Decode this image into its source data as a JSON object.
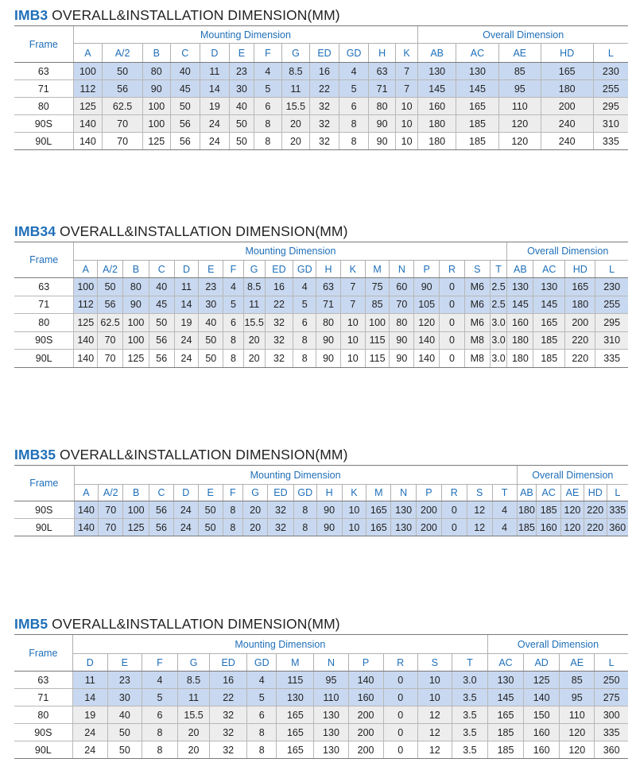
{
  "sections": [
    {
      "id": "imb3",
      "code": "IMB3",
      "title_rest": " OVERALL&INSTALLATION DIMENSION(MM)",
      "frame_label": "Frame",
      "mounting_label": "Mounting Dimension",
      "overall_label": "Overall Dimension",
      "mounting_cols": [
        "A",
        "A/2",
        "B",
        "C",
        "D",
        "E",
        "F",
        "G",
        "ED",
        "GD",
        "H",
        "K"
      ],
      "overall_cols": [
        "AB",
        "AC",
        "AE",
        "HD",
        "L"
      ],
      "rows": [
        {
          "frame": "63",
          "values": [
            "100",
            "50",
            "80",
            "40",
            "11",
            "23",
            "4",
            "8.5",
            "16",
            "4",
            "63",
            "7",
            "130",
            "130",
            "85",
            "165",
            "230"
          ]
        },
        {
          "frame": "71",
          "values": [
            "112",
            "56",
            "90",
            "45",
            "14",
            "30",
            "5",
            "11",
            "22",
            "5",
            "71",
            "7",
            "145",
            "145",
            "95",
            "180",
            "255"
          ]
        },
        {
          "frame": "80",
          "values": [
            "125",
            "62.5",
            "100",
            "50",
            "19",
            "40",
            "6",
            "15.5",
            "32",
            "6",
            "80",
            "10",
            "160",
            "165",
            "110",
            "200",
            "295"
          ]
        },
        {
          "frame": "90S",
          "values": [
            "140",
            "70",
            "100",
            "56",
            "24",
            "50",
            "8",
            "20",
            "32",
            "8",
            "90",
            "10",
            "180",
            "185",
            "120",
            "240",
            "310"
          ]
        },
        {
          "frame": "90L",
          "values": [
            "140",
            "70",
            "125",
            "56",
            "24",
            "50",
            "8",
            "20",
            "32",
            "8",
            "90",
            "10",
            "180",
            "185",
            "120",
            "240",
            "335"
          ]
        }
      ]
    },
    {
      "id": "imb34",
      "code": "IMB34",
      "title_rest": " OVERALL&INSTALLATION DIMENSION(MM)",
      "frame_label": "Frame",
      "mounting_label": "Mounting Dimension",
      "overall_label": "Overall Dimension",
      "mounting_cols": [
        "A",
        "A/2",
        "B",
        "C",
        "D",
        "E",
        "F",
        "G",
        "ED",
        "GD",
        "H",
        "K",
        "M",
        "N",
        "P",
        "R",
        "S",
        "T"
      ],
      "overall_cols": [
        "AB",
        "AC",
        "HD",
        "L"
      ],
      "rows": [
        {
          "frame": "63",
          "values": [
            "100",
            "50",
            "80",
            "40",
            "11",
            "23",
            "4",
            "8.5",
            "16",
            "4",
            "63",
            "7",
            "75",
            "60",
            "90",
            "0",
            "M6",
            "2.5",
            "130",
            "130",
            "165",
            "230"
          ]
        },
        {
          "frame": "71",
          "values": [
            "112",
            "56",
            "90",
            "45",
            "14",
            "30",
            "5",
            "11",
            "22",
            "5",
            "71",
            "7",
            "85",
            "70",
            "105",
            "0",
            "M6",
            "2.5",
            "145",
            "145",
            "180",
            "255"
          ]
        },
        {
          "frame": "80",
          "values": [
            "125",
            "62.5",
            "100",
            "50",
            "19",
            "40",
            "6",
            "15.5",
            "32",
            "6",
            "80",
            "10",
            "100",
            "80",
            "120",
            "0",
            "M6",
            "3.0",
            "160",
            "165",
            "200",
            "295"
          ]
        },
        {
          "frame": "90S",
          "values": [
            "140",
            "70",
            "100",
            "56",
            "24",
            "50",
            "8",
            "20",
            "32",
            "8",
            "90",
            "10",
            "115",
            "90",
            "140",
            "0",
            "M8",
            "3.0",
            "180",
            "185",
            "220",
            "310"
          ]
        },
        {
          "frame": "90L",
          "values": [
            "140",
            "70",
            "125",
            "56",
            "24",
            "50",
            "8",
            "20",
            "32",
            "8",
            "90",
            "10",
            "115",
            "90",
            "140",
            "0",
            "M8",
            "3.0",
            "180",
            "185",
            "220",
            "335"
          ]
        }
      ]
    },
    {
      "id": "imb35",
      "code": "IMB35",
      "title_rest": " OVERALL&INSTALLATION DIMENSION(MM)",
      "frame_label": "Frame",
      "mounting_label": "Mounting Dimension",
      "overall_label": "Overall Dimension",
      "mounting_cols": [
        "A",
        "A/2",
        "B",
        "C",
        "D",
        "E",
        "F",
        "G",
        "ED",
        "GD",
        "H",
        "K",
        "M",
        "N",
        "P",
        "R",
        "S",
        "T"
      ],
      "overall_cols": [
        "AB",
        "AC",
        "AE",
        "HD",
        "L"
      ],
      "rows": [
        {
          "frame": "90S",
          "values": [
            "140",
            "70",
            "100",
            "56",
            "24",
            "50",
            "8",
            "20",
            "32",
            "8",
            "90",
            "10",
            "165",
            "130",
            "200",
            "0",
            "12",
            "4",
            "180",
            "185",
            "120",
            "220",
            "335"
          ]
        },
        {
          "frame": "90L",
          "values": [
            "140",
            "70",
            "125",
            "56",
            "24",
            "50",
            "8",
            "20",
            "32",
            "8",
            "90",
            "10",
            "165",
            "130",
            "200",
            "0",
            "12",
            "4",
            "185",
            "160",
            "120",
            "220",
            "360"
          ]
        }
      ]
    },
    {
      "id": "imb5",
      "code": "IMB5",
      "title_rest": " OVERALL&INSTALLATION DIMENSION(MM)",
      "frame_label": "Frame",
      "mounting_label": "Mounting Dimension",
      "overall_label": "Overall Dimension",
      "mounting_cols": [
        "D",
        "E",
        "F",
        "G",
        "ED",
        "GD",
        "M",
        "N",
        "P",
        "R",
        "S",
        "T"
      ],
      "overall_cols": [
        "AC",
        "AD",
        "AE",
        "L"
      ],
      "rows": [
        {
          "frame": "63",
          "values": [
            "11",
            "23",
            "4",
            "8.5",
            "16",
            "4",
            "115",
            "95",
            "140",
            "0",
            "10",
            "3.0",
            "130",
            "125",
            "85",
            "250"
          ]
        },
        {
          "frame": "71",
          "values": [
            "14",
            "30",
            "5",
            "11",
            "22",
            "5",
            "130",
            "110",
            "160",
            "0",
            "10",
            "3.5",
            "145",
            "140",
            "95",
            "275"
          ]
        },
        {
          "frame": "80",
          "values": [
            "19",
            "40",
            "6",
            "15.5",
            "32",
            "6",
            "165",
            "130",
            "200",
            "0",
            "12",
            "3.5",
            "165",
            "150",
            "110",
            "300"
          ]
        },
        {
          "frame": "90S",
          "values": [
            "24",
            "50",
            "8",
            "20",
            "32",
            "8",
            "165",
            "130",
            "200",
            "0",
            "12",
            "3.5",
            "185",
            "160",
            "120",
            "335"
          ]
        },
        {
          "frame": "90L",
          "values": [
            "24",
            "50",
            "8",
            "20",
            "32",
            "8",
            "165",
            "130",
            "200",
            "0",
            "12",
            "3.5",
            "185",
            "160",
            "120",
            "360"
          ]
        }
      ]
    }
  ]
}
